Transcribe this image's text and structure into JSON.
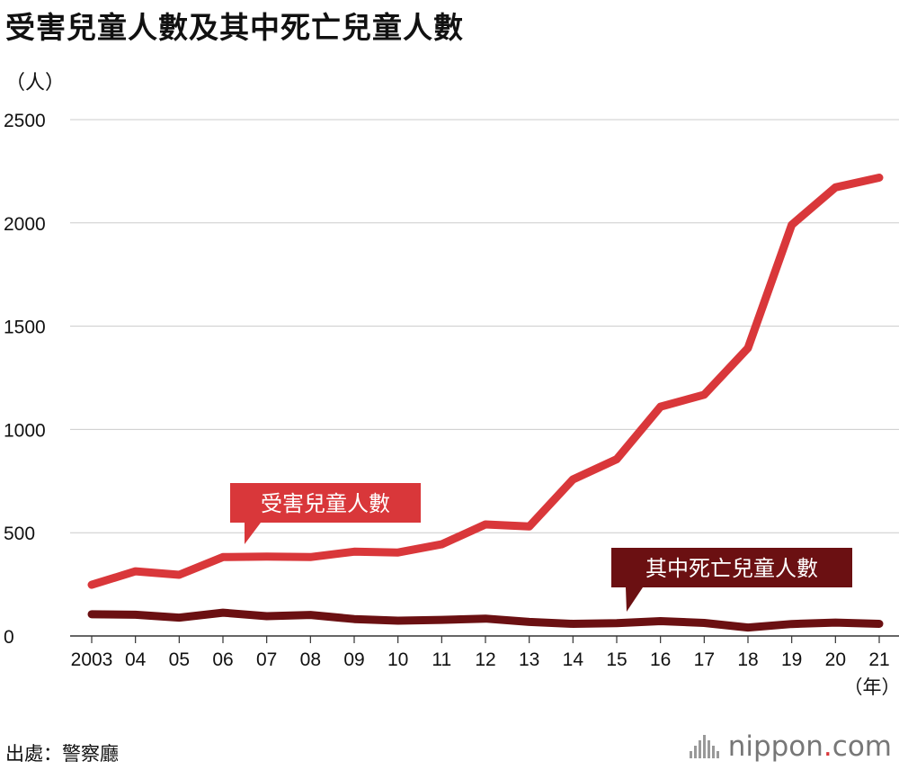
{
  "title": "受害兒童人數及其中死亡兒童人數",
  "unit_label": "（人）",
  "year_unit": "（年）",
  "source": "出處：警察廳",
  "brand": {
    "name": "nippon",
    "suffix": ".com"
  },
  "colors": {
    "victims": "#d9373a",
    "deaths": "#6b1012",
    "grid": "#cccccc"
  },
  "chart_data": {
    "type": "line",
    "x": [
      "2003",
      "04",
      "05",
      "06",
      "07",
      "08",
      "09",
      "10",
      "11",
      "12",
      "13",
      "14",
      "15",
      "16",
      "17",
      "18",
      "19",
      "20",
      "21"
    ],
    "ylim": [
      0,
      2500
    ],
    "yticks": [
      0,
      500,
      1000,
      1500,
      2000,
      2500
    ],
    "grid": true,
    "series": [
      {
        "name": "受害兒童人數",
        "color": "#d9373a",
        "values": [
          248,
          313,
          296,
          382,
          384,
          382,
          408,
          404,
          444,
          540,
          530,
          758,
          856,
          1110,
          1168,
          1394,
          1991,
          2172,
          2219
        ]
      },
      {
        "name": "其中死亡兒童人數",
        "color": "#6b1012",
        "values": [
          105,
          103,
          89,
          113,
          96,
          102,
          82,
          74,
          78,
          84,
          68,
          59,
          62,
          72,
          63,
          41,
          58,
          65,
          59
        ]
      }
    ]
  }
}
